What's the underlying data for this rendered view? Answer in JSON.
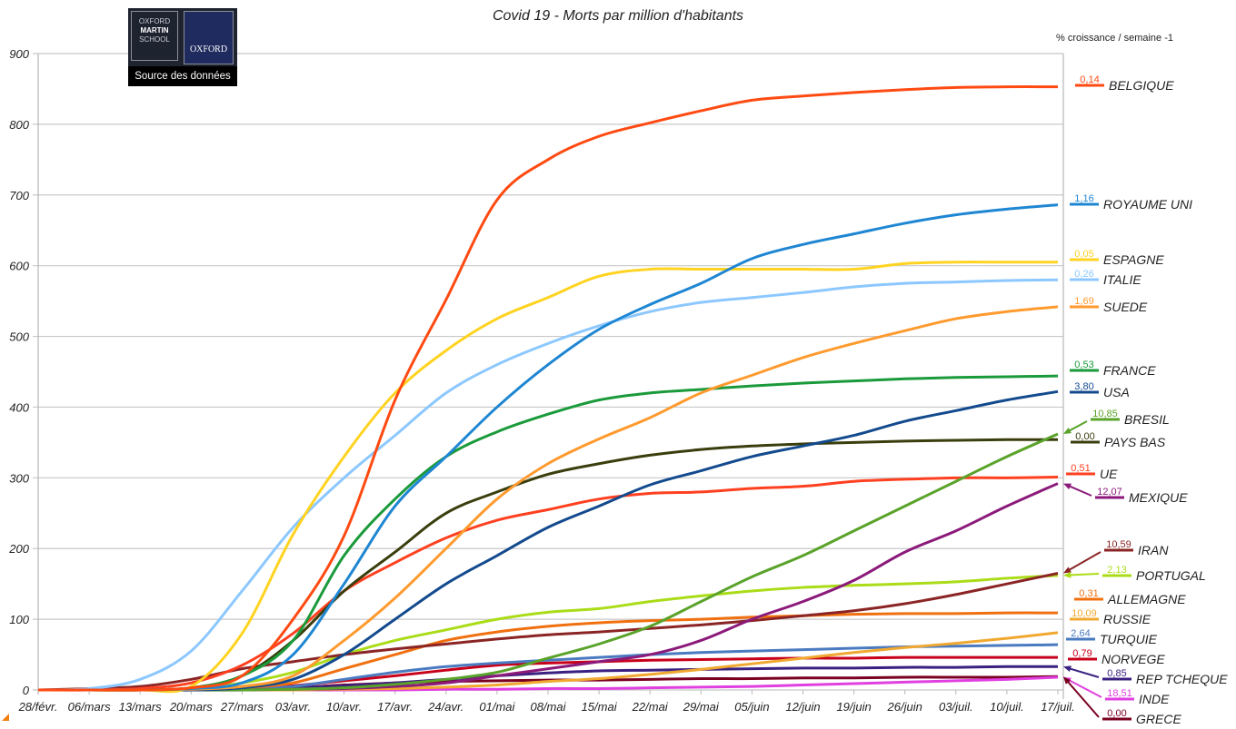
{
  "chart_data": {
    "type": "line",
    "title": "Covid 19 - Morts par million d'habitants",
    "legend_header": "% croissance / semaine -1",
    "legend_placement": "right",
    "ylim": [
      0,
      900
    ],
    "yticks": [
      0,
      100,
      200,
      300,
      400,
      500,
      600,
      700,
      800,
      900
    ],
    "grid": true,
    "x": [
      "28/févr.",
      "06/mars",
      "13/mars",
      "20/mars",
      "27/mars",
      "03/avr.",
      "10/avr.",
      "17/avr.",
      "24/avr.",
      "01/mai",
      "08/mai",
      "15/mai",
      "22/mai",
      "29/mai",
      "05/juin",
      "12/juin",
      "19/juin",
      "26/juin",
      "03/juil.",
      "10/juil.",
      "17/juil."
    ],
    "series": [
      {
        "name": "BELGIQUE",
        "growth": "0,14",
        "color": "#ff4a12",
        "values": [
          0,
          0,
          0,
          3,
          20,
          100,
          218,
          410,
          552,
          693,
          750,
          783,
          802,
          819,
          834,
          840,
          845,
          849,
          852,
          853,
          853
        ]
      },
      {
        "name": "ROYAUME UNI",
        "growth": "1,16",
        "color": "#1e86d2",
        "values": [
          0,
          0,
          0,
          2,
          10,
          50,
          150,
          260,
          330,
          400,
          460,
          510,
          545,
          575,
          610,
          630,
          645,
          660,
          672,
          680,
          686
        ]
      },
      {
        "name": "ESPAGNE",
        "growth": "0,05",
        "color": "#ffd320",
        "values": [
          0,
          0,
          0,
          5,
          80,
          220,
          330,
          420,
          480,
          525,
          555,
          585,
          595,
          595,
          595,
          595,
          595,
          603,
          605,
          605,
          605
        ]
      },
      {
        "name": "ITALIE",
        "growth": "0,26",
        "color": "#8cc8ff",
        "values": [
          0,
          2,
          15,
          55,
          140,
          230,
          300,
          360,
          420,
          460,
          490,
          515,
          535,
          548,
          555,
          562,
          570,
          575,
          577,
          579,
          580
        ]
      },
      {
        "name": "SUEDE",
        "growth": "1,69",
        "color": "#ff9a2e",
        "values": [
          0,
          0,
          0,
          1,
          5,
          20,
          70,
          130,
          200,
          270,
          320,
          355,
          385,
          420,
          445,
          470,
          490,
          508,
          525,
          535,
          542
        ]
      },
      {
        "name": "FRANCE",
        "growth": "0,53",
        "color": "#1a9a3a",
        "values": [
          0,
          0,
          0,
          3,
          20,
          70,
          190,
          270,
          330,
          365,
          390,
          410,
          420,
          425,
          430,
          434,
          437,
          440,
          442,
          443,
          444
        ]
      },
      {
        "name": "USA",
        "growth": "3,80",
        "color": "#134a8e",
        "values": [
          0,
          0,
          0,
          0,
          3,
          15,
          50,
          100,
          150,
          190,
          230,
          260,
          290,
          310,
          330,
          345,
          360,
          380,
          395,
          410,
          422
        ]
      },
      {
        "name": "BRESIL",
        "growth": "10,85",
        "color": "#5aa32a",
        "values": [
          0,
          0,
          0,
          0,
          0,
          1,
          3,
          8,
          15,
          25,
          45,
          65,
          90,
          125,
          160,
          190,
          225,
          260,
          295,
          330,
          362
        ]
      },
      {
        "name": "PAYS BAS",
        "growth": "0,00",
        "color": "#3a3d0c",
        "values": [
          0,
          0,
          0,
          3,
          20,
          70,
          140,
          195,
          250,
          280,
          305,
          320,
          332,
          340,
          345,
          348,
          350,
          352,
          353,
          354,
          354
        ]
      },
      {
        "name": "UE",
        "growth": "0,51",
        "color": "#ff4020",
        "values": [
          0,
          0,
          2,
          10,
          35,
          80,
          140,
          180,
          215,
          240,
          255,
          270,
          278,
          280,
          285,
          288,
          295,
          298,
          300,
          300,
          301
        ]
      },
      {
        "name": "MEXIQUE",
        "growth": "12,07",
        "color": "#8b1a7a",
        "values": [
          0,
          0,
          0,
          0,
          0,
          1,
          2,
          5,
          10,
          20,
          30,
          40,
          50,
          70,
          100,
          125,
          155,
          195,
          225,
          260,
          292
        ]
      },
      {
        "name": "IRAN",
        "growth": "10,59",
        "color": "#8b2525",
        "values": [
          0,
          2,
          5,
          15,
          30,
          40,
          50,
          58,
          65,
          72,
          78,
          82,
          87,
          92,
          98,
          105,
          112,
          122,
          135,
          150,
          165
        ]
      },
      {
        "name": "PORTUGAL",
        "growth": "2,13",
        "color": "#aadc18",
        "values": [
          0,
          0,
          0,
          2,
          10,
          25,
          50,
          70,
          85,
          100,
          110,
          115,
          125,
          133,
          140,
          145,
          148,
          150,
          153,
          158,
          162
        ]
      },
      {
        "name": "ALLEMAGNE",
        "growth": "0,31",
        "color": "#f07010",
        "values": [
          0,
          0,
          0,
          1,
          3,
          10,
          30,
          50,
          70,
          82,
          90,
          95,
          98,
          100,
          103,
          105,
          107,
          108,
          108,
          109,
          109
        ]
      },
      {
        "name": "RUSSIE",
        "growth": "10,09",
        "color": "#f0a830",
        "values": [
          0,
          0,
          0,
          0,
          0,
          0,
          1,
          2,
          4,
          7,
          12,
          16,
          22,
          29,
          37,
          45,
          53,
          60,
          66,
          73,
          81
        ]
      },
      {
        "name": "TURQUIE",
        "growth": "2,64",
        "color": "#4a7ac0",
        "values": [
          0,
          0,
          0,
          0,
          1,
          5,
          15,
          25,
          33,
          38,
          42,
          46,
          50,
          53,
          55,
          57,
          59,
          61,
          62,
          63,
          64
        ]
      },
      {
        "name": "NORVEGE",
        "growth": "0,79",
        "color": "#c8001a",
        "values": [
          0,
          0,
          0,
          0,
          2,
          6,
          13,
          20,
          28,
          35,
          38,
          40,
          42,
          43,
          44,
          45,
          45,
          46,
          46,
          46,
          46
        ]
      },
      {
        "name": "REP TCHEQUE",
        "growth": "0,85",
        "color": "#3a2080",
        "values": [
          0,
          0,
          0,
          0,
          0,
          3,
          6,
          10,
          15,
          20,
          24,
          27,
          28,
          29,
          30,
          31,
          31,
          32,
          32,
          33,
          33
        ]
      },
      {
        "name": "INDE",
        "growth": "18,51",
        "color": "#e040e0",
        "values": [
          0,
          0,
          0,
          0,
          0,
          0,
          0,
          0,
          1,
          1,
          2,
          2,
          3,
          4,
          5,
          7,
          9,
          11,
          13,
          15,
          18
        ]
      },
      {
        "name": "GRECE",
        "growth": "0,00",
        "color": "#7a0020",
        "values": [
          0,
          0,
          0,
          0,
          1,
          3,
          7,
          10,
          12,
          13,
          14,
          14,
          15,
          16,
          16,
          17,
          17,
          18,
          18,
          18,
          19
        ]
      }
    ]
  },
  "logo": {
    "line1": "OXFORD",
    "line2": "MARTIN",
    "line3": "SCHOOL",
    "university": "OXFORD",
    "source_label": "Source des données"
  }
}
